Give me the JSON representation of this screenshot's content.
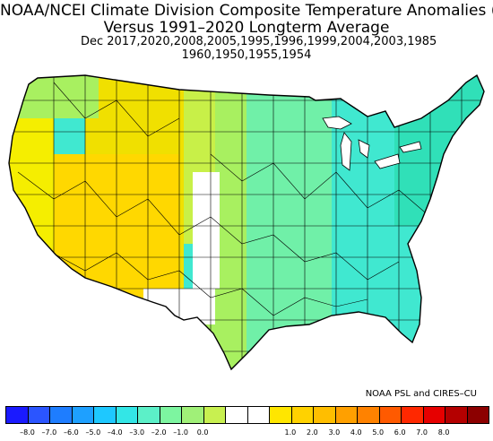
{
  "title": {
    "line1": "NOAA/NCEI Climate Division Composite Temperature Anomalies (F)",
    "line2": "Versus 1991–2020 Longterm Average",
    "line3": "Dec   2017,2020,2008,2005,1995,1996,1999,2004,2003,1985",
    "line4": "1960,1950,1955,1954"
  },
  "credit": "NOAA PSL and CIRES–CU",
  "legend": {
    "colors": [
      "#1a1aff",
      "#2b55ff",
      "#1e7dff",
      "#1ea0ff",
      "#1ec8ff",
      "#33e6e6",
      "#5cf0c8",
      "#7df5a0",
      "#a0f078",
      "#c8f050",
      "#ffffff",
      "#ffffff",
      "#ffe600",
      "#ffd200",
      "#ffbe00",
      "#ffa000",
      "#ff8200",
      "#ff5a00",
      "#ff2800",
      "#e60000",
      "#b40000",
      "#8c0000"
    ],
    "ticks": [
      "–8.0",
      "–7.0",
      "–6.0",
      "–5.0",
      "–4.0",
      "–3.0",
      "–2.0",
      "–1.0",
      "0.0",
      "1.0",
      "2.0",
      "3.0",
      "4.0",
      "5.0",
      "6.0",
      "7.0",
      "8.0"
    ]
  },
  "map_colors": {
    "west_coast": "#f5ee00",
    "great_basin": "#ffd800",
    "rockies": "#f0e000",
    "plains_west": "#c8f048",
    "plains": "#a8f060",
    "midwest": "#70f0a8",
    "east": "#40e8d0",
    "northeast": "#30e0b8",
    "neutral": "#ffffff"
  }
}
